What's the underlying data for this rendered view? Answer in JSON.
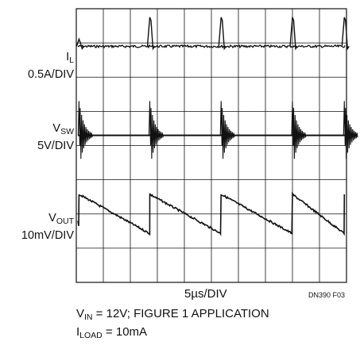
{
  "chart_data": {
    "type": "line",
    "title": "",
    "xlabel": "5µs/DIV",
    "figure_code": "DN390 F03",
    "grid": {
      "divisions_x": 10,
      "divisions_y": 8,
      "on": true
    },
    "xlim": [
      0,
      50
    ],
    "x_unit": "µs",
    "pulse_times_us": [
      0.5,
      13.6,
      26.8,
      40.0,
      49.6
    ],
    "series": [
      {
        "name_main": "I",
        "name_sub": "L",
        "scale": "0.5A/DIV",
        "baseline_div": 6.9,
        "spike_height_div": 0.85,
        "points": [
          [
            0,
            0
          ],
          [
            0.5,
            0.5
          ],
          [
            13.6,
            0.42
          ],
          [
            26.8,
            0.42
          ],
          [
            40.0,
            0.42
          ],
          [
            49.6,
            0.42
          ],
          [
            50,
            0
          ]
        ]
      },
      {
        "name_main": "V",
        "name_sub": "SW",
        "scale": "5V/DIV",
        "baseline_div": 4.3,
        "spike_height_div": 1.0,
        "points": [
          [
            0,
            0
          ],
          [
            0.5,
            5
          ],
          [
            13.6,
            5
          ],
          [
            26.8,
            5
          ],
          [
            40.0,
            5
          ],
          [
            49.6,
            5
          ],
          [
            50,
            0
          ]
        ]
      },
      {
        "name_main": "V",
        "name_sub": "OUT",
        "scale": "10mV/DIV",
        "baseline_div": 2.0,
        "ramp_div": 1.15,
        "points": [
          [
            0.5,
            10
          ],
          [
            13.6,
            -1.5
          ],
          [
            26.8,
            -1.5
          ],
          [
            40.0,
            -1.5
          ],
          [
            49.6,
            -1.5
          ]
        ]
      }
    ]
  },
  "caption": {
    "line1_main": "V",
    "line1_sub": "IN",
    "line1_rest": " = 12V; FIGURE 1 APPLICATION",
    "line2_main": "I",
    "line2_sub": "LOAD",
    "line2_rest": " = 10mA"
  }
}
